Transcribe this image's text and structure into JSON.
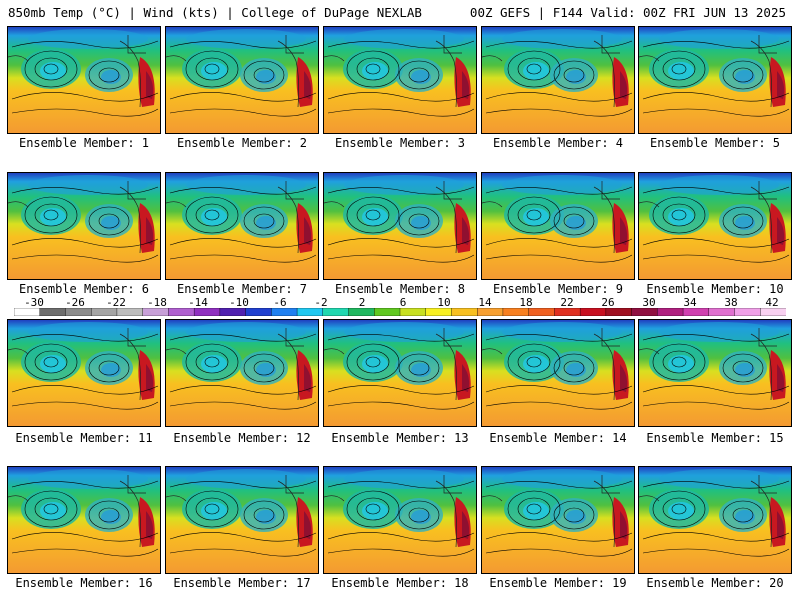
{
  "header": {
    "left": "850mb Temp (°C) | Wind (kts) | College of DuPage NEXLAB",
    "right": "00Z GEFS | F144 Valid: 00Z FRI JUN 13 2025"
  },
  "panels": [
    {
      "label": "Ensemble Member: 1"
    },
    {
      "label": "Ensemble Member: 2"
    },
    {
      "label": "Ensemble Member: 3"
    },
    {
      "label": "Ensemble Member: 4"
    },
    {
      "label": "Ensemble Member: 5"
    },
    {
      "label": "Ensemble Member: 6"
    },
    {
      "label": "Ensemble Member: 7"
    },
    {
      "label": "Ensemble Member: 8"
    },
    {
      "label": "Ensemble Member: 9"
    },
    {
      "label": "Ensemble Member: 10"
    },
    {
      "label": "Ensemble Member: 11"
    },
    {
      "label": "Ensemble Member: 12"
    },
    {
      "label": "Ensemble Member: 13"
    },
    {
      "label": "Ensemble Member: 14"
    },
    {
      "label": "Ensemble Member: 15"
    },
    {
      "label": "Ensemble Member: 16"
    },
    {
      "label": "Ensemble Member: 17"
    },
    {
      "label": "Ensemble Member: 18"
    },
    {
      "label": "Ensemble Member: 19"
    },
    {
      "label": "Ensemble Member: 20"
    }
  ],
  "colorbar": {
    "labels": [
      "-30",
      "-26",
      "-22",
      "-18",
      "-14",
      "-10",
      "-6",
      "-2",
      "2",
      "6",
      "10",
      "14",
      "18",
      "22",
      "26",
      "30",
      "34",
      "38",
      "42"
    ],
    "colors": [
      "#ffffff",
      "#6e6e6e",
      "#8c8c8c",
      "#a5a5a5",
      "#bdbdbd",
      "#c8a0d8",
      "#b060d0",
      "#9030c0",
      "#5020b0",
      "#2040d0",
      "#2080f0",
      "#20c8f0",
      "#20d8b0",
      "#20b860",
      "#60c820",
      "#c8e020",
      "#f8f020",
      "#f8c020",
      "#f8a030",
      "#f88020",
      "#f06020",
      "#e03020",
      "#c81020",
      "#a01020",
      "#901040",
      "#b02080",
      "#d040b0",
      "#e070d0",
      "#f0a0e8",
      "#f8d0f0"
    ]
  }
}
